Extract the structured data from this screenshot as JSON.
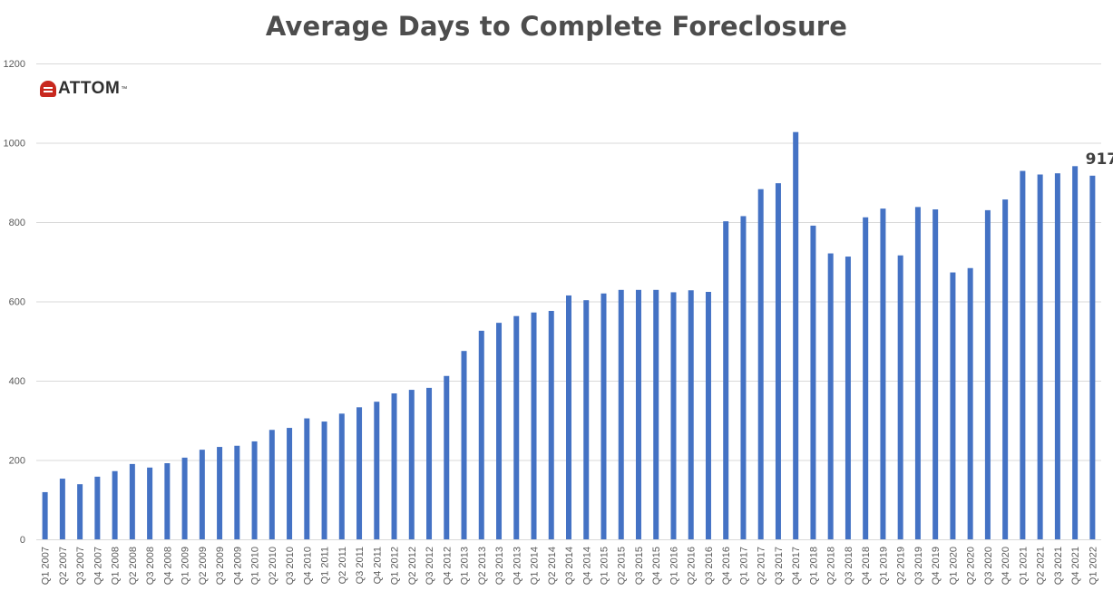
{
  "title": "Average Days to Complete Foreclosure",
  "logo": {
    "text": "ATTOM",
    "trademark": "™"
  },
  "colors": {
    "bar": "#4472c4",
    "grid": "#d9d9d9",
    "text": "#595959",
    "title": "#4d4d4d"
  },
  "chart_data": {
    "type": "bar",
    "title": "Average Days to Complete Foreclosure",
    "xlabel": "",
    "ylabel": "",
    "ylim": [
      0,
      1200
    ],
    "yticks": [
      0,
      200,
      400,
      600,
      800,
      1000,
      1200
    ],
    "grid": true,
    "categories": [
      "Q1 2007",
      "Q2 2007",
      "Q3 2007",
      "Q4 2007",
      "Q1 2008",
      "Q2 2008",
      "Q3 2008",
      "Q4 2008",
      "Q1 2009",
      "Q2 2009",
      "Q3 2009",
      "Q4 2009",
      "Q1 2010",
      "Q2 2010",
      "Q3 2010",
      "Q4 2010",
      "Q1 2011",
      "Q2 2011",
      "Q3 2011",
      "Q4 2011",
      "Q1 2012",
      "Q2 2012",
      "Q3 2012",
      "Q4 2012",
      "Q1 2013",
      "Q2 2013",
      "Q3 2013",
      "Q4 2013",
      "Q1 2014",
      "Q2 2014",
      "Q3 2014",
      "Q4 2014",
      "Q1 2015",
      "Q2 2015",
      "Q3 2015",
      "Q4 2015",
      "Q1 2016",
      "Q2 2016",
      "Q3 2016",
      "Q4 2016",
      "Q1 2017",
      "Q2 2017",
      "Q3 2017",
      "Q4 2017",
      "Q1 2018",
      "Q2 2018",
      "Q3 2018",
      "Q4 2018",
      "Q1 2019",
      "Q2 2019",
      "Q3 2019",
      "Q4 2019",
      "Q1 2020",
      "Q2 2020",
      "Q3 2020",
      "Q4 2020",
      "Q1 2021",
      "Q2 2021",
      "Q3 2021",
      "Q4 2021",
      "Q1 2022"
    ],
    "values": [
      119,
      153,
      139,
      158,
      172,
      190,
      181,
      192,
      206,
      226,
      233,
      236,
      247,
      276,
      281,
      305,
      297,
      317,
      333,
      347,
      368,
      377,
      382,
      412,
      475,
      526,
      546,
      563,
      572,
      576,
      615,
      603,
      620,
      629,
      629,
      629,
      623,
      628,
      624,
      802,
      815,
      883,
      898,
      1027,
      791,
      721,
      713,
      812,
      834,
      716,
      838,
      832,
      673,
      684,
      830,
      857,
      929,
      920,
      923,
      941,
      917
    ],
    "annotations": [
      {
        "category": "Q1 2022",
        "text": "917"
      }
    ]
  }
}
